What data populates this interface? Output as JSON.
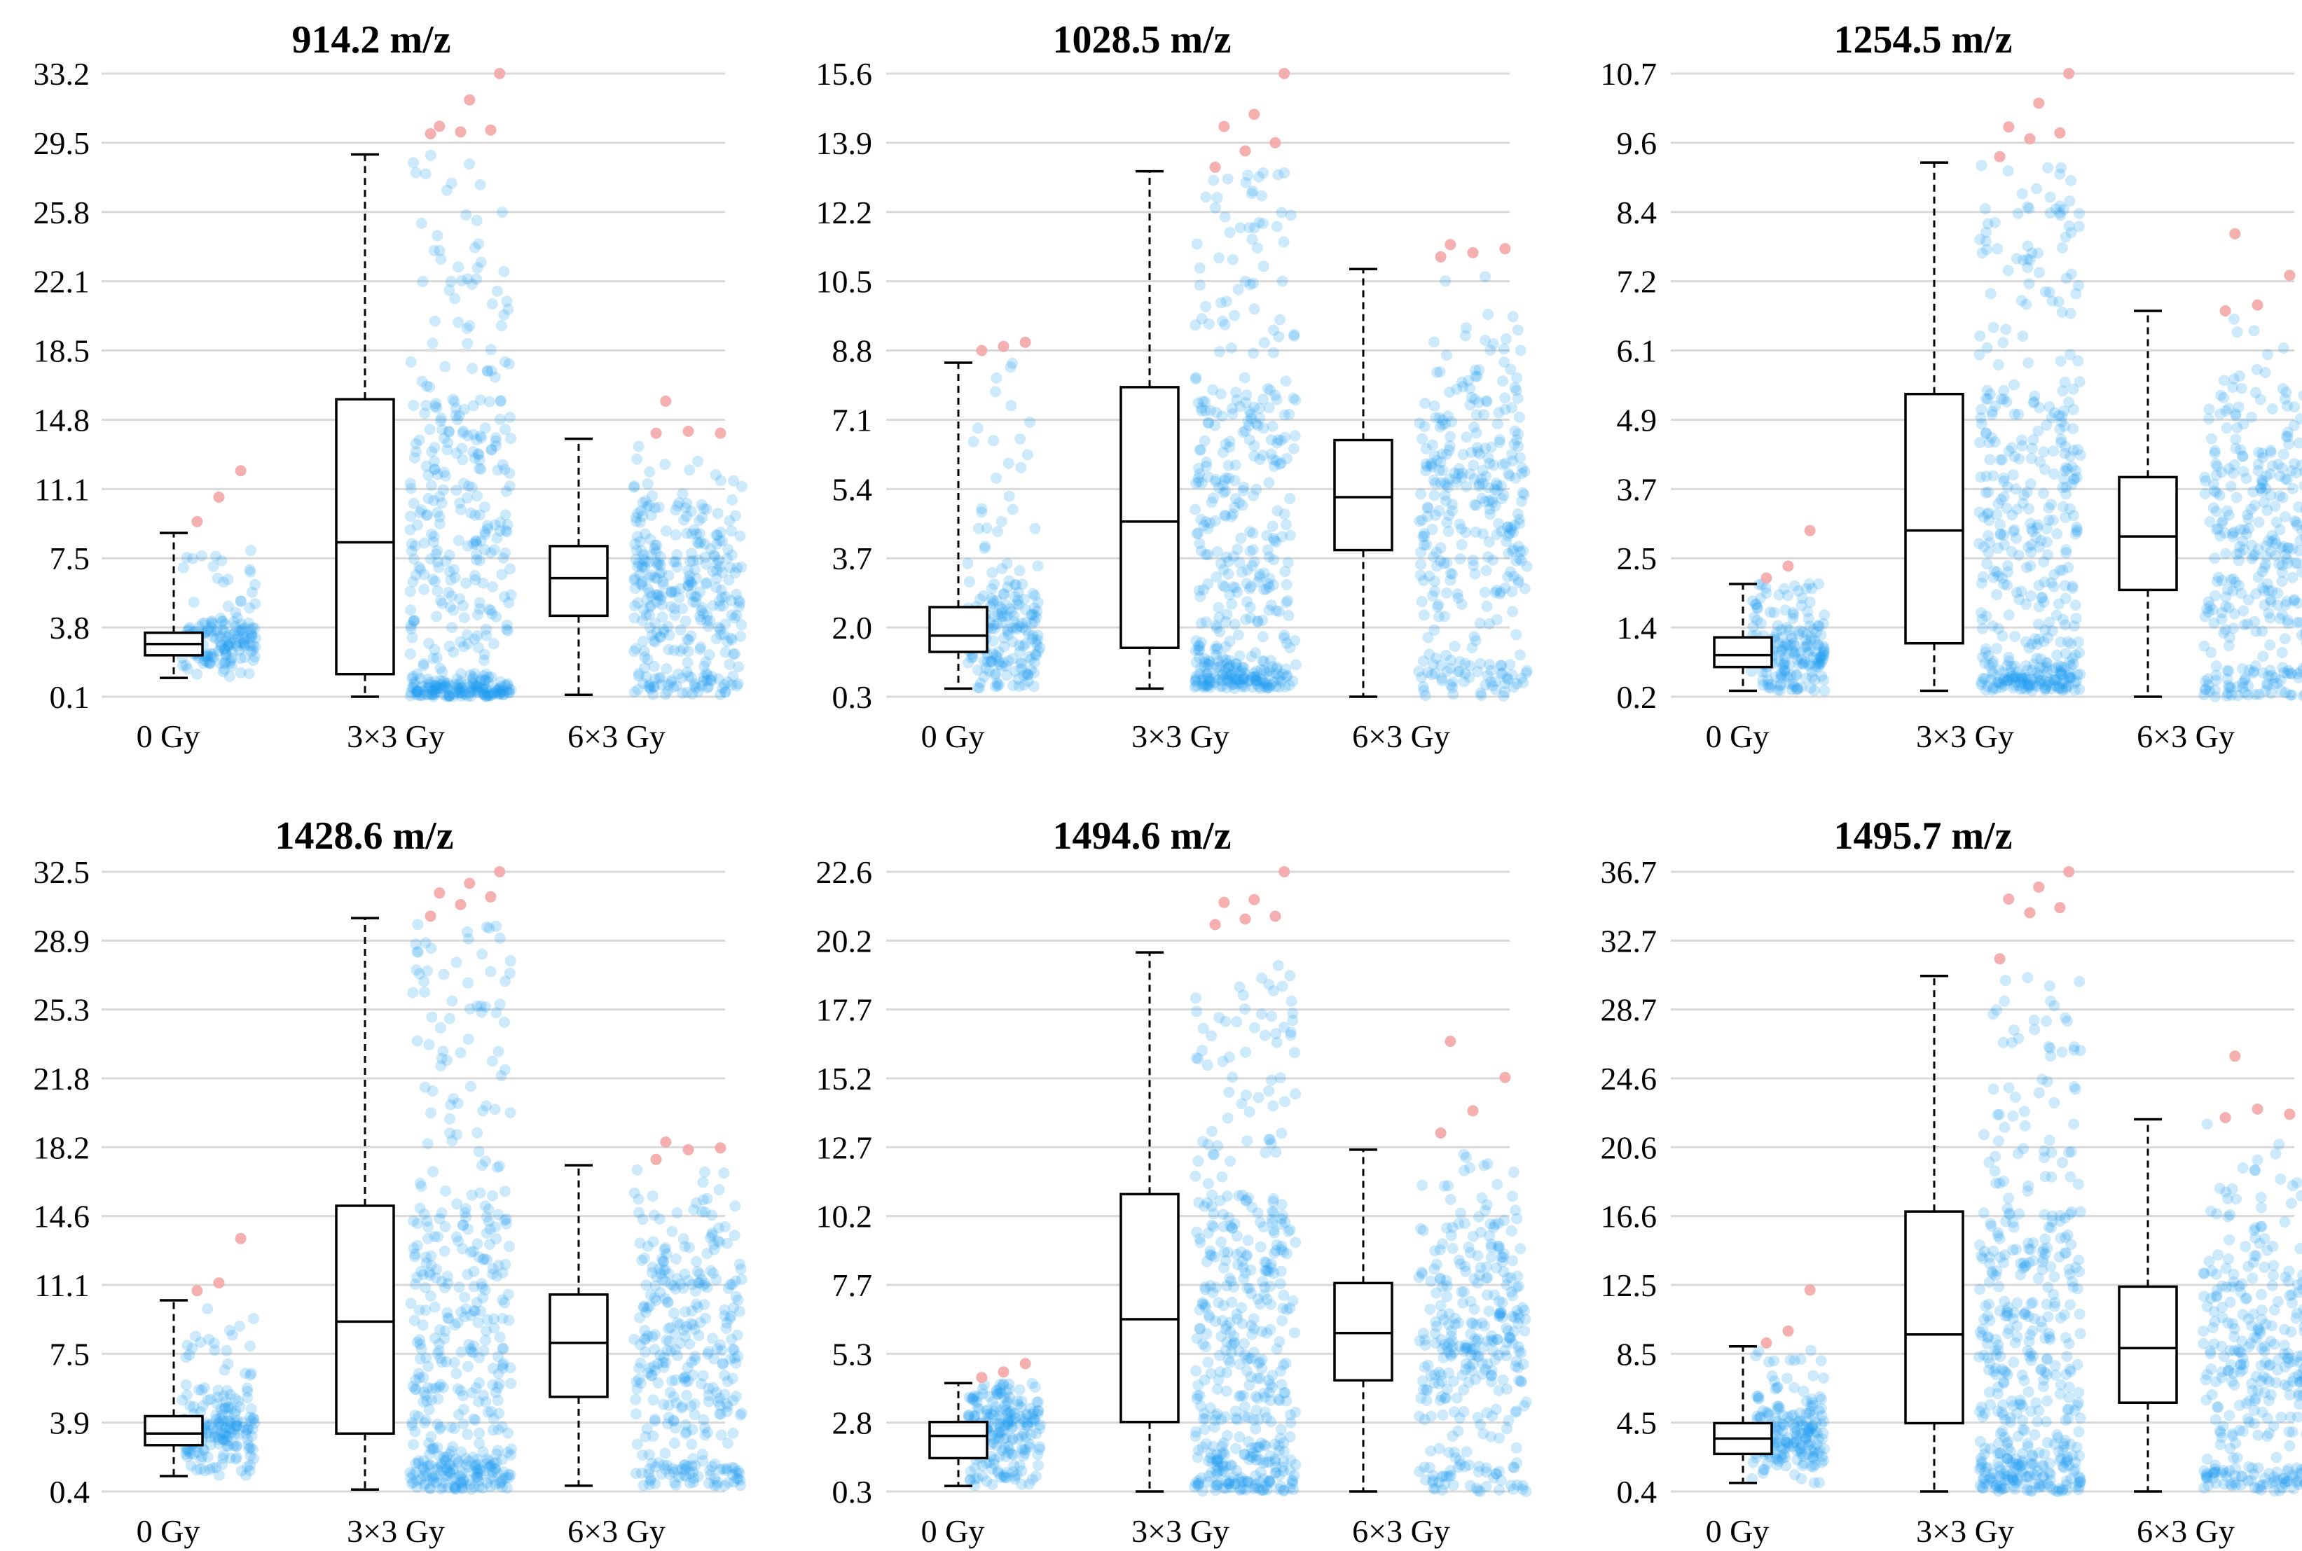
{
  "colors": {
    "jitter": "#1a9cf0",
    "outlier": "#f4a6a6",
    "box": "#000000",
    "grid": "#d9d9d9"
  },
  "chart_data": [
    {
      "type": "box",
      "title": "914.2 m/z",
      "yticks": [
        "0.1",
        "3.8",
        "7.5",
        "11.1",
        "14.8",
        "18.5",
        "22.1",
        "25.8",
        "29.5",
        "33.2"
      ],
      "ylim": [
        0.1,
        33.2
      ],
      "categories": [
        "0 Gy",
        "3×3 Gy",
        "6×3 Gy"
      ],
      "boxes": [
        {
          "min": 1.1,
          "q1": 2.3,
          "median": 2.9,
          "q3": 3.5,
          "max": 8.8,
          "outliers": [
            9.4,
            10.7,
            12.1
          ],
          "dist": "low",
          "n": 160
        },
        {
          "min": 0.1,
          "q1": 1.3,
          "median": 8.3,
          "q3": 15.9,
          "max": 28.9,
          "outliers": [
            30.0,
            30.1,
            30.2,
            30.4,
            31.8,
            33.2
          ],
          "dist": "bimodal",
          "n": 430
        },
        {
          "min": 0.2,
          "q1": 4.4,
          "median": 6.4,
          "q3": 8.1,
          "max": 13.8,
          "outliers": [
            14.1,
            14.2,
            14.1,
            15.8
          ],
          "dist": "mid",
          "n": 320
        }
      ]
    },
    {
      "type": "box",
      "title": "1028.5 m/z",
      "yticks": [
        "0.3",
        "2.0",
        "3.7",
        "5.4",
        "7.1",
        "8.8",
        "10.5",
        "12.2",
        "13.9",
        "15.6"
      ],
      "ylim": [
        0.3,
        15.6
      ],
      "categories": [
        "0 Gy",
        "3×3 Gy",
        "6×3 Gy"
      ],
      "boxes": [
        {
          "min": 0.5,
          "q1": 1.4,
          "median": 1.8,
          "q3": 2.5,
          "max": 8.5,
          "outliers": [
            8.8,
            8.9,
            9.0
          ],
          "dist": "low",
          "n": 200
        },
        {
          "min": 0.5,
          "q1": 1.5,
          "median": 4.6,
          "q3": 7.9,
          "max": 13.2,
          "outliers": [
            13.3,
            13.7,
            13.9,
            14.3,
            14.6,
            15.6
          ],
          "dist": "bimodal",
          "n": 430
        },
        {
          "min": 0.3,
          "q1": 3.9,
          "median": 5.2,
          "q3": 6.6,
          "max": 10.8,
          "outliers": [
            11.1,
            11.2,
            11.3,
            11.4
          ],
          "dist": "mid",
          "n": 330
        }
      ]
    },
    {
      "type": "box",
      "title": "1254.5 m/z",
      "yticks": [
        "0.2",
        "1.4",
        "2.5",
        "3.7",
        "4.9",
        "6.1",
        "7.2",
        "8.4",
        "9.6",
        "10.7"
      ],
      "ylim": [
        0.2,
        10.7
      ],
      "categories": [
        "0 Gy",
        "3×3 Gy",
        "6×3 Gy"
      ],
      "boxes": [
        {
          "min": 0.3,
          "q1": 0.7,
          "median": 0.9,
          "q3": 1.2,
          "max": 2.1,
          "outliers": [
            2.2,
            2.4,
            3.0
          ],
          "dist": "low",
          "n": 190
        },
        {
          "min": 0.3,
          "q1": 1.1,
          "median": 3.0,
          "q3": 5.3,
          "max": 9.2,
          "outliers": [
            9.3,
            9.6,
            9.7,
            9.8,
            10.2,
            10.7
          ],
          "dist": "bimodal",
          "n": 440
        },
        {
          "min": 0.2,
          "q1": 2.0,
          "median": 2.9,
          "q3": 3.9,
          "max": 6.7,
          "outliers": [
            6.7,
            6.8,
            7.3,
            8.0
          ],
          "dist": "mid",
          "n": 330
        }
      ]
    },
    {
      "type": "box",
      "title": "1428.6 m/z",
      "yticks": [
        "0.4",
        "3.9",
        "7.5",
        "11.1",
        "14.6",
        "18.2",
        "21.8",
        "25.3",
        "28.9",
        "32.5"
      ],
      "ylim": [
        0.4,
        32.5
      ],
      "categories": [
        "0 Gy",
        "3×3 Gy",
        "6×3 Gy"
      ],
      "boxes": [
        {
          "min": 1.2,
          "q1": 2.8,
          "median": 3.4,
          "q3": 4.3,
          "max": 10.3,
          "outliers": [
            10.8,
            11.2,
            13.5
          ],
          "dist": "low",
          "n": 190
        },
        {
          "min": 0.5,
          "q1": 3.4,
          "median": 9.2,
          "q3": 15.2,
          "max": 30.1,
          "outliers": [
            30.2,
            30.8,
            31.2,
            31.4,
            31.9,
            32.5
          ],
          "dist": "bimodal",
          "n": 440
        },
        {
          "min": 0.7,
          "q1": 5.3,
          "median": 8.1,
          "q3": 10.6,
          "max": 17.3,
          "outliers": [
            17.6,
            18.1,
            18.2,
            18.5
          ],
          "dist": "mid",
          "n": 330
        }
      ]
    },
    {
      "type": "box",
      "title": "1494.6 m/z",
      "yticks": [
        "0.3",
        "2.8",
        "5.3",
        "7.7",
        "10.2",
        "12.7",
        "15.2",
        "17.7",
        "20.2",
        "22.6"
      ],
      "ylim": [
        0.3,
        22.6
      ],
      "categories": [
        "0 Gy",
        "3×3 Gy",
        "6×3 Gy"
      ],
      "boxes": [
        {
          "min": 0.5,
          "q1": 1.5,
          "median": 2.3,
          "q3": 2.8,
          "max": 4.2,
          "outliers": [
            4.4,
            4.6,
            4.9
          ],
          "dist": "low",
          "n": 210
        },
        {
          "min": 0.3,
          "q1": 2.8,
          "median": 6.5,
          "q3": 11.0,
          "max": 19.7,
          "outliers": [
            20.7,
            20.9,
            21.0,
            21.5,
            21.6,
            22.6
          ],
          "dist": "bimodal",
          "n": 450
        },
        {
          "min": 0.3,
          "q1": 4.3,
          "median": 6.0,
          "q3": 7.8,
          "max": 12.6,
          "outliers": [
            13.2,
            14.0,
            15.2,
            16.5
          ],
          "dist": "mid",
          "n": 320
        }
      ]
    },
    {
      "type": "box",
      "title": "1495.7 m/z",
      "yticks": [
        "0.4",
        "4.5",
        "8.5",
        "12.5",
        "16.6",
        "20.6",
        "24.6",
        "28.7",
        "32.7",
        "36.7"
      ],
      "ylim": [
        0.4,
        36.7
      ],
      "categories": [
        "0 Gy",
        "3×3 Gy",
        "6×3 Gy"
      ],
      "boxes": [
        {
          "min": 0.9,
          "q1": 2.6,
          "median": 3.5,
          "q3": 4.4,
          "max": 8.9,
          "outliers": [
            9.1,
            9.8,
            12.2
          ],
          "dist": "low",
          "n": 200
        },
        {
          "min": 0.4,
          "q1": 4.4,
          "median": 9.6,
          "q3": 16.8,
          "max": 30.6,
          "outliers": [
            31.6,
            34.3,
            34.6,
            35.1,
            35.8,
            36.7
          ],
          "dist": "bimodal",
          "n": 450
        },
        {
          "min": 0.4,
          "q1": 5.6,
          "median": 8.8,
          "q3": 12.4,
          "max": 22.2,
          "outliers": [
            22.3,
            22.8,
            22.5,
            25.9
          ],
          "dist": "mid",
          "n": 330
        }
      ]
    }
  ]
}
